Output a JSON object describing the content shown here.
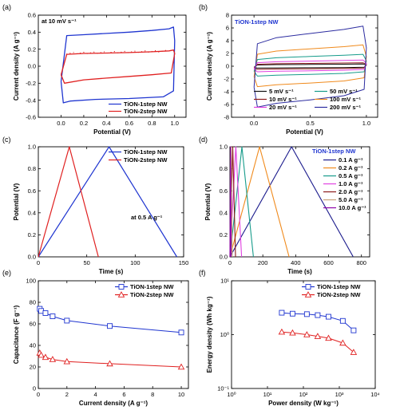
{
  "chart_data": [
    {
      "id": "a",
      "panel_label": "(a)",
      "type": "line",
      "xlabel": "Potential (V)",
      "ylabel": "Current density (A g⁻¹)",
      "xlim": [
        -0.2,
        1.1
      ],
      "ylim": [
        -0.6,
        0.6
      ],
      "xticks": [
        0.0,
        0.2,
        0.4,
        0.6,
        0.8,
        1.0
      ],
      "xtick_labels": [
        "0.0",
        "0.2",
        "0.4",
        "0.6",
        "0.8",
        "1.0"
      ],
      "yticks": [
        -0.6,
        -0.4,
        -0.2,
        0.0,
        0.2,
        0.4,
        0.6
      ],
      "ytick_labels": [
        "-0.6",
        "-0.4",
        "-0.2",
        "0.0",
        "0.2",
        "0.4",
        "0.6"
      ],
      "annotation": "at 10 mV s⁻¹",
      "legend_position": "bottom-right",
      "series": [
        {
          "name": "TiON-1step NW",
          "color": "#1f35d0",
          "marker": "none",
          "x": [
            0.0,
            0.05,
            0.2,
            0.4,
            0.6,
            0.8,
            0.95,
            0.99,
            1.0,
            0.99,
            0.9,
            0.6,
            0.3,
            0.08,
            0.02,
            0.0
          ],
          "y": [
            -0.18,
            0.36,
            0.37,
            0.385,
            0.4,
            0.42,
            0.44,
            0.46,
            0.3,
            -0.29,
            -0.36,
            -0.38,
            -0.39,
            -0.41,
            -0.43,
            -0.18
          ]
        },
        {
          "name": "TiON-2step NW",
          "color": "#e02020",
          "marker": "none",
          "x": [
            0.0,
            0.05,
            0.2,
            0.4,
            0.6,
            0.8,
            0.95,
            0.99,
            1.0,
            0.97,
            0.8,
            0.6,
            0.4,
            0.2,
            0.03,
            0.0
          ],
          "y": [
            -0.1,
            0.14,
            0.15,
            0.155,
            0.16,
            0.17,
            0.18,
            0.19,
            0.15,
            -0.08,
            -0.1,
            -0.12,
            -0.14,
            -0.16,
            -0.2,
            -0.1
          ]
        }
      ]
    },
    {
      "id": "b",
      "panel_label": "(b)",
      "type": "line",
      "xlabel": "Potential (V)",
      "ylabel": "Current density (A g⁻¹)",
      "xlim": [
        -0.2,
        1.1
      ],
      "ylim": [
        -8,
        8
      ],
      "xticks": [
        0.0,
        0.5,
        1.0
      ],
      "xtick_labels": [
        "0.0",
        "0.5",
        "1.0"
      ],
      "yticks": [
        -8,
        -6,
        -4,
        -2,
        0,
        2,
        4,
        6,
        8
      ],
      "ytick_labels": [
        "-8",
        "-6",
        "-4",
        "-2",
        "0",
        "2",
        "4",
        "6",
        "8"
      ],
      "title": "TiON-1step NW",
      "legend_position": "bottom-right",
      "series": [
        {
          "name": "5 mV s⁻¹",
          "color": "#111111",
          "amp_top": 0.35,
          "amp_bottom": -0.3
        },
        {
          "name": "50 mV s⁻¹",
          "color": "#159b8a",
          "amp_top": 1.9,
          "amp_bottom": -1.6
        },
        {
          "name": "10 mV s⁻¹",
          "color": "#8b1a1a",
          "amp_top": 0.55,
          "amp_bottom": -0.5
        },
        {
          "name": "100 mV s⁻¹",
          "color": "#f08a1c",
          "amp_top": 3.4,
          "amp_bottom": -3.3
        },
        {
          "name": "20 mV s⁻¹",
          "color": "#e040e0",
          "amp_top": 1.0,
          "amp_bottom": -0.9
        },
        {
          "name": "200 mV s⁻¹",
          "color": "#2c2ca0",
          "amp_top": 6.4,
          "amp_bottom": -6.6
        }
      ]
    },
    {
      "id": "c",
      "panel_label": "(c)",
      "type": "line",
      "xlabel": "Time (s)",
      "ylabel": "Potential (V)",
      "xlim": [
        0,
        150
      ],
      "ylim": [
        0.0,
        1.0
      ],
      "xticks": [
        0,
        50,
        100,
        150
      ],
      "xtick_labels": [
        "0",
        "50",
        "100",
        "150"
      ],
      "yticks": [
        0.0,
        0.2,
        0.4,
        0.6,
        0.8,
        1.0
      ],
      "ytick_labels": [
        "0.0",
        "0.2",
        "0.4",
        "0.6",
        "0.8",
        "1.0"
      ],
      "annotation": "at 0.5 A g⁻¹",
      "legend_position": "top-right",
      "series": [
        {
          "name": "TiON-1step NW",
          "color": "#1f35d0",
          "x": [
            0,
            73,
            143
          ],
          "y": [
            0.0,
            1.0,
            0.0
          ]
        },
        {
          "name": "TiON-2step NW",
          "color": "#e02020",
          "x": [
            0,
            32,
            62
          ],
          "y": [
            0.0,
            1.0,
            0.0
          ]
        }
      ]
    },
    {
      "id": "d",
      "panel_label": "(d)",
      "type": "line",
      "xlabel": "Time (s)",
      "ylabel": "Potential (V)",
      "xlim": [
        0,
        850
      ],
      "ylim": [
        0.0,
        1.0
      ],
      "xticks": [
        0,
        200,
        400,
        600,
        800
      ],
      "xtick_labels": [
        "0",
        "200",
        "400",
        "600",
        "800"
      ],
      "yticks": [
        0.0,
        0.2,
        0.4,
        0.6,
        0.8,
        1.0
      ],
      "ytick_labels": [
        "0.0",
        "0.2",
        "0.4",
        "0.6",
        "0.8",
        "1.0"
      ],
      "title": "TiON-1step NW",
      "legend_position": "top-right",
      "series": [
        {
          "name": "0.1 A g⁻¹",
          "color": "#1a1a8c",
          "x": [
            0,
            375,
            750
          ],
          "y": [
            0,
            1,
            0
          ]
        },
        {
          "name": "0.2 A g⁻¹",
          "color": "#f08a1c",
          "x": [
            0,
            180,
            360
          ],
          "y": [
            0,
            1,
            0
          ]
        },
        {
          "name": "0.5 A g⁻¹",
          "color": "#159b8a",
          "x": [
            0,
            73,
            143
          ],
          "y": [
            0,
            1,
            0
          ]
        },
        {
          "name": "1.0 A g⁻¹",
          "color": "#e040e0",
          "x": [
            0,
            36,
            71
          ],
          "y": [
            0,
            1,
            0
          ]
        },
        {
          "name": "2.0 A g⁻¹",
          "color": "#8b1a1a",
          "x": [
            0,
            17,
            34
          ],
          "y": [
            0,
            1,
            0
          ]
        },
        {
          "name": "5.0 A g⁻¹",
          "color": "#c8a078",
          "x": [
            0,
            7,
            14
          ],
          "y": [
            0,
            1,
            0
          ]
        },
        {
          "name": "10.0 A g⁻¹",
          "color": "#8c00a8",
          "x": [
            0,
            3.5,
            7
          ],
          "y": [
            0,
            1,
            0
          ]
        }
      ]
    },
    {
      "id": "e",
      "panel_label": "(e)",
      "type": "line",
      "xlabel": "Current density (A g⁻¹)",
      "ylabel": "Capacitance (F g⁻¹)",
      "xlim": [
        0,
        10.5
      ],
      "ylim": [
        0,
        100
      ],
      "xticks": [
        0,
        2,
        4,
        6,
        8,
        10
      ],
      "xtick_labels": [
        "0",
        "2",
        "4",
        "6",
        "8",
        "10"
      ],
      "yticks": [
        0,
        20,
        40,
        60,
        80,
        100
      ],
      "ytick_labels": [
        "0",
        "20",
        "40",
        "60",
        "80",
        "100"
      ],
      "legend_position": "top-right",
      "series": [
        {
          "name": "TiON-1step NW",
          "color": "#1f35d0",
          "marker": "square",
          "x": [
            0.1,
            0.2,
            0.5,
            1.0,
            2.0,
            5.0,
            10.0
          ],
          "y": [
            74,
            72,
            70,
            67,
            63,
            58,
            52
          ]
        },
        {
          "name": "TiON-2step NW",
          "color": "#e02020",
          "marker": "triangle",
          "x": [
            0.1,
            0.2,
            0.5,
            1.0,
            2.0,
            5.0,
            10.0
          ],
          "y": [
            33,
            31,
            29,
            27,
            25,
            23,
            20
          ]
        }
      ]
    },
    {
      "id": "f",
      "panel_label": "(f)",
      "type": "line",
      "xlabel": "Power density (W kg⁻¹)",
      "ylabel": "Energy density (Wh kg⁻¹)",
      "xscale": "log",
      "yscale": "log",
      "xlim": [
        1,
        10000
      ],
      "ylim": [
        0.1,
        10
      ],
      "xticks": [
        1,
        10,
        100,
        1000,
        10000
      ],
      "xtick_labels": [
        "10⁰",
        "10¹",
        "10²",
        "10³",
        "10⁴"
      ],
      "yticks": [
        0.1,
        1,
        10
      ],
      "ytick_labels": [
        "10⁻¹",
        "10⁰",
        "10¹"
      ],
      "legend_position": "top-right",
      "series": [
        {
          "name": "TiON-1step NW",
          "color": "#1f35d0",
          "marker": "square",
          "x": [
            25,
            50,
            125,
            250,
            500,
            1250,
            2500
          ],
          "y": [
            2.55,
            2.45,
            2.4,
            2.3,
            2.15,
            1.8,
            1.2
          ]
        },
        {
          "name": "TiON-2step NW",
          "color": "#e02020",
          "marker": "triangle",
          "x": [
            25,
            50,
            125,
            250,
            500,
            1250,
            2500
          ],
          "y": [
            1.12,
            1.08,
            1.0,
            0.93,
            0.86,
            0.7,
            0.47
          ]
        }
      ]
    }
  ]
}
